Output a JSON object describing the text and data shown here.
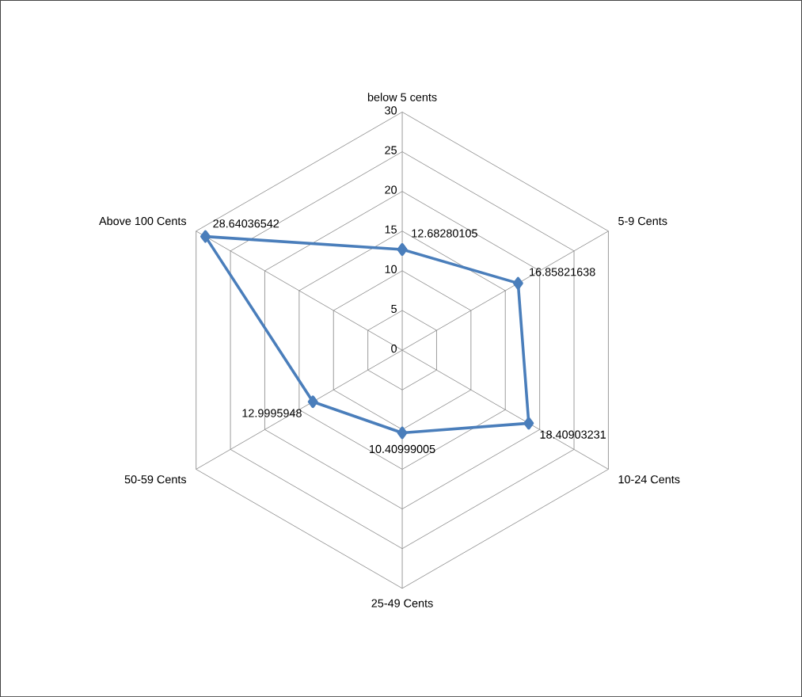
{
  "chart_data": {
    "type": "radar",
    "categories": [
      "below 5 cents",
      "5-9 Cents",
      "10-24 Cents",
      "25-49 Cents",
      "50-59 Cents",
      "Above 100 Cents"
    ],
    "series": [
      {
        "color": "#4a7ebb",
        "values": [
          12.68280105,
          16.85821638,
          18.40903231,
          10.40999005,
          12.9995948,
          28.64036542
        ]
      }
    ],
    "ylim": [
      0,
      30
    ],
    "yticks": [
      0,
      5,
      10,
      15,
      20,
      25,
      30
    ],
    "grid": true,
    "marker": "diamond",
    "line_style": "solid",
    "data_labels": true
  }
}
